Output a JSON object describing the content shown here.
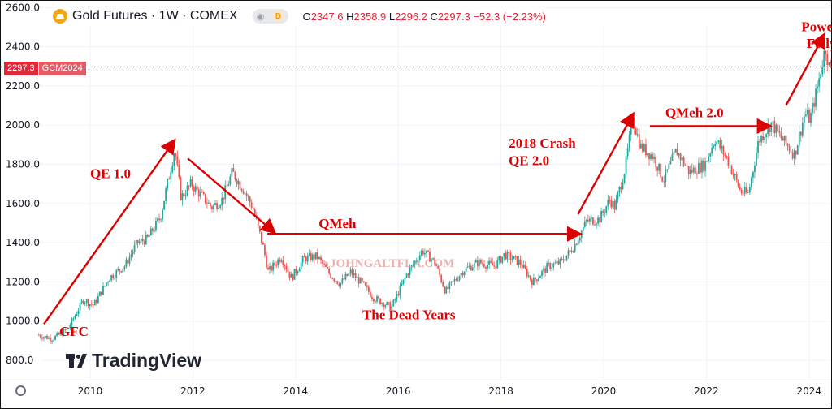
{
  "header": {
    "symbol": "Gold Futures · 1W · COMEX",
    "pill_d": "D",
    "ohlc": {
      "o_label": "O",
      "o": "2347.6",
      "h_label": "H",
      "h": "2358.9",
      "l_label": "L",
      "l": "2296.2",
      "c_label": "C",
      "c": "2297.3",
      "change": "−52.3 (−2.23%)"
    }
  },
  "price_tag": {
    "price": "2297.3",
    "symbol": "GCM2024"
  },
  "branding": {
    "name": "TradingView"
  },
  "colors": {
    "annotation": "#dd0000",
    "up": "#26a69a",
    "down": "#ef5350",
    "price_line": "#e0283a"
  },
  "chart_data": {
    "type": "candlestick",
    "ylim": [
      800,
      2600
    ],
    "y_ticks": [
      800,
      1000,
      1200,
      1400,
      1600,
      1800,
      2000,
      2200,
      2400,
      2600
    ],
    "y_tick_labels": [
      "800.0",
      "1000.0",
      "1200.0",
      "1400.0",
      "1600.0",
      "1800.0",
      "2000.0",
      "2200.0",
      "2400.0",
      "2600.0"
    ],
    "xlim": [
      2009.0,
      2024.45
    ],
    "x_ticks": [
      2010,
      2012,
      2014,
      2016,
      2018,
      2020,
      2022,
      2024
    ],
    "x_tick_labels": [
      "2010",
      "2012",
      "2014",
      "2016",
      "2018",
      "2020",
      "2022",
      "2024"
    ],
    "last_price": 2297.3,
    "price_path": [
      [
        2009.0,
        930
      ],
      [
        2009.3,
        910
      ],
      [
        2009.6,
        960
      ],
      [
        2009.9,
        1110
      ],
      [
        2010.1,
        1080
      ],
      [
        2010.4,
        1220
      ],
      [
        2010.7,
        1280
      ],
      [
        2010.95,
        1400
      ],
      [
        2011.15,
        1420
      ],
      [
        2011.4,
        1530
      ],
      [
        2011.6,
        1780
      ],
      [
        2011.68,
        1880
      ],
      [
        2011.8,
        1630
      ],
      [
        2012.0,
        1700
      ],
      [
        2012.2,
        1640
      ],
      [
        2012.4,
        1580
      ],
      [
        2012.6,
        1620
      ],
      [
        2012.8,
        1760
      ],
      [
        2013.0,
        1680
      ],
      [
        2013.2,
        1580
      ],
      [
        2013.4,
        1380
      ],
      [
        2013.5,
        1250
      ],
      [
        2013.75,
        1330
      ],
      [
        2013.95,
        1220
      ],
      [
        2014.2,
        1320
      ],
      [
        2014.45,
        1330
      ],
      [
        2014.7,
        1240
      ],
      [
        2014.9,
        1190
      ],
      [
        2015.1,
        1250
      ],
      [
        2015.3,
        1200
      ],
      [
        2015.55,
        1120
      ],
      [
        2015.9,
        1070
      ],
      [
        2016.2,
        1240
      ],
      [
        2016.5,
        1360
      ],
      [
        2016.75,
        1300
      ],
      [
        2016.95,
        1150
      ],
      [
        2017.3,
        1260
      ],
      [
        2017.6,
        1300
      ],
      [
        2017.9,
        1280
      ],
      [
        2018.1,
        1340
      ],
      [
        2018.4,
        1300
      ],
      [
        2018.65,
        1200
      ],
      [
        2018.95,
        1280
      ],
      [
        2019.2,
        1300
      ],
      [
        2019.45,
        1380
      ],
      [
        2019.7,
        1510
      ],
      [
        2019.95,
        1520
      ],
      [
        2020.15,
        1620
      ],
      [
        2020.25,
        1580
      ],
      [
        2020.45,
        1780
      ],
      [
        2020.6,
        2040
      ],
      [
        2020.75,
        1890
      ],
      [
        2021.0,
        1840
      ],
      [
        2021.2,
        1720
      ],
      [
        2021.45,
        1870
      ],
      [
        2021.7,
        1760
      ],
      [
        2022.0,
        1800
      ],
      [
        2022.2,
        1930
      ],
      [
        2022.45,
        1820
      ],
      [
        2022.7,
        1660
      ],
      [
        2022.85,
        1650
      ],
      [
        2023.05,
        1920
      ],
      [
        2023.3,
        2010
      ],
      [
        2023.5,
        1930
      ],
      [
        2023.75,
        1850
      ],
      [
        2023.95,
        2060
      ],
      [
        2024.05,
        2030
      ],
      [
        2024.2,
        2200
      ],
      [
        2024.35,
        2400
      ],
      [
        2024.42,
        2297
      ]
    ],
    "annotations": [
      {
        "text": "QE 1.0",
        "x": 2010.0,
        "y": 1730
      },
      {
        "text": "GFC",
        "x": 2009.4,
        "y": 925
      },
      {
        "text": "QMeh",
        "x": 2014.45,
        "y": 1475
      },
      {
        "text": "The Dead Years",
        "x": 2015.3,
        "y": 1010
      },
      {
        "text": "2018 Crash",
        "x": 2018.15,
        "y": 1885
      },
      {
        "text": "QE 2.0",
        "x": 2018.15,
        "y": 1795
      },
      {
        "text": "QMeh 2.0",
        "x": 2021.2,
        "y": 2040
      },
      {
        "text": "Powell's",
        "x": 2023.85,
        "y": 2480
      },
      {
        "text": "Folly",
        "x": 2023.95,
        "y": 2395
      }
    ],
    "arrows": [
      {
        "from": [
          2009.1,
          985
        ],
        "to": [
          2011.65,
          1925
        ]
      },
      {
        "from": [
          2011.9,
          1830
        ],
        "to": [
          2013.6,
          1450
        ]
      },
      {
        "from": [
          2013.45,
          1445
        ],
        "to": [
          2019.55,
          1445
        ]
      },
      {
        "from": [
          2019.5,
          1545
        ],
        "to": [
          2020.58,
          2060
        ]
      },
      {
        "from": [
          2020.9,
          1995
        ],
        "to": [
          2023.25,
          1995
        ]
      },
      {
        "from": [
          2023.55,
          2100
        ],
        "to": [
          2024.3,
          2465
        ]
      }
    ],
    "watermark": "JOHNGALTFLA.COM"
  }
}
